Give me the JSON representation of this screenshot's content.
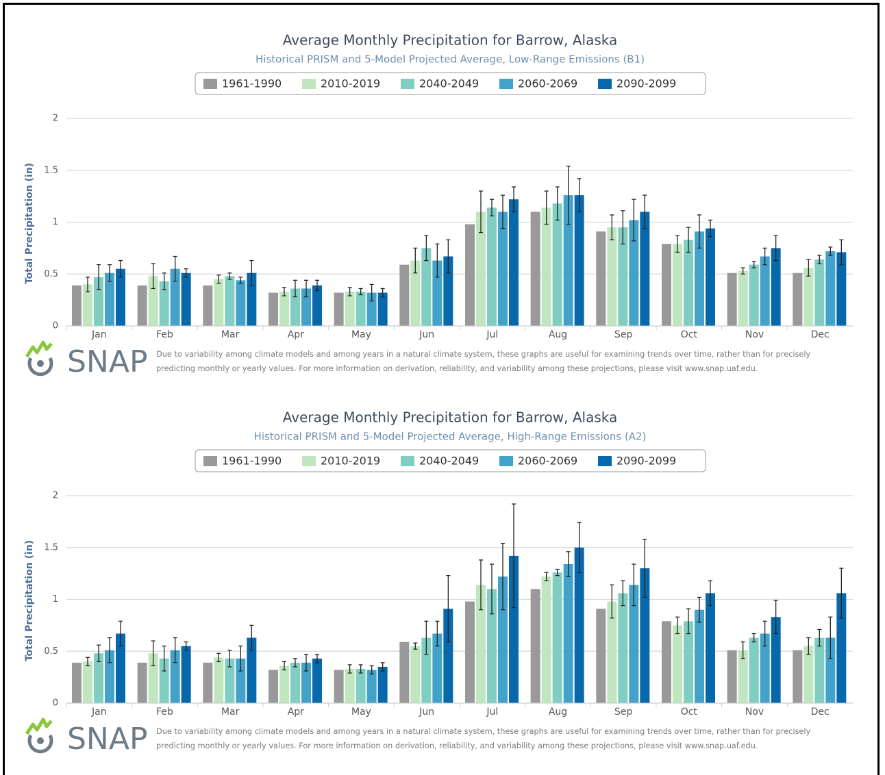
{
  "chart_data": [
    {
      "type": "bar",
      "title": "Average Monthly Precipitation for Barrow, Alaska",
      "subtitle": "Historical PRISM and 5-Model Projected Average, Low-Range Emissions (B1)",
      "y_label": "Total Precipitation (in)",
      "categories": [
        "Jan",
        "Feb",
        "Mar",
        "Apr",
        "May",
        "Jun",
        "Jul",
        "Aug",
        "Sep",
        "Oct",
        "Nov",
        "Dec"
      ],
      "ylim": [
        0,
        2
      ],
      "yticks": [
        0,
        0.5,
        1,
        1.5,
        2
      ],
      "grid": true,
      "series": [
        {
          "name": "1961-1990",
          "color": "#999999",
          "values": [
            0.39,
            0.39,
            0.39,
            0.32,
            0.32,
            0.59,
            0.98,
            1.1,
            0.91,
            0.79,
            0.51,
            0.51
          ]
        },
        {
          "name": "2010-2019",
          "color": "#bfe6bf",
          "values": [
            0.4,
            0.48,
            0.45,
            0.33,
            0.33,
            0.63,
            1.1,
            1.14,
            0.95,
            0.79,
            0.53,
            0.56
          ],
          "errors": [
            0.07,
            0.12,
            0.04,
            0.04,
            0.04,
            0.12,
            0.2,
            0.16,
            0.12,
            0.08,
            0.03,
            0.08
          ]
        },
        {
          "name": "2040-2049",
          "color": "#80cdc1",
          "values": [
            0.47,
            0.43,
            0.48,
            0.36,
            0.33,
            0.75,
            1.14,
            1.18,
            0.95,
            0.83,
            0.59,
            0.64
          ],
          "errors": [
            0.12,
            0.08,
            0.03,
            0.08,
            0.03,
            0.12,
            0.08,
            0.16,
            0.16,
            0.12,
            0.03,
            0.04
          ]
        },
        {
          "name": "2060-2069",
          "color": "#43a2ca",
          "values": [
            0.51,
            0.55,
            0.44,
            0.36,
            0.32,
            0.63,
            1.1,
            1.26,
            1.02,
            0.91,
            0.67,
            0.72
          ],
          "errors": [
            0.08,
            0.12,
            0.03,
            0.08,
            0.08,
            0.16,
            0.16,
            0.28,
            0.2,
            0.16,
            0.08,
            0.04
          ]
        },
        {
          "name": "2090-2099",
          "color": "#0868ac",
          "values": [
            0.55,
            0.51,
            0.51,
            0.39,
            0.32,
            0.67,
            1.22,
            1.26,
            1.1,
            0.94,
            0.75,
            0.71
          ],
          "errors": [
            0.08,
            0.04,
            0.12,
            0.05,
            0.04,
            0.16,
            0.12,
            0.16,
            0.16,
            0.08,
            0.12,
            0.12
          ]
        }
      ],
      "logo_text": "SNAP",
      "note": "Due to variability among climate models and among years in a natural climate system, these graphs are useful for examining trends over time, rather than for precisely predicting monthly or yearly values. For more information on derivation, reliability, and variability among these projections, please visit www.snap.uaf.edu."
    },
    {
      "type": "bar",
      "title": "Average Monthly Precipitation for Barrow, Alaska",
      "subtitle": "Historical PRISM and 5-Model Projected Average, High-Range Emissions (A2)",
      "y_label": "Total Precipitation (in)",
      "categories": [
        "Jan",
        "Feb",
        "Mar",
        "Apr",
        "May",
        "Jun",
        "Jul",
        "Aug",
        "Sep",
        "Oct",
        "Nov",
        "Dec"
      ],
      "ylim": [
        0,
        2
      ],
      "yticks": [
        0,
        0.5,
        1,
        1.5,
        2
      ],
      "grid": true,
      "series": [
        {
          "name": "1961-1990",
          "color": "#999999",
          "values": [
            0.39,
            0.39,
            0.39,
            0.32,
            0.32,
            0.59,
            0.98,
            1.1,
            0.91,
            0.79,
            0.51,
            0.51
          ]
        },
        {
          "name": "2010-2019",
          "color": "#bfe6bf",
          "values": [
            0.4,
            0.48,
            0.44,
            0.36,
            0.33,
            0.55,
            1.14,
            1.22,
            0.98,
            0.75,
            0.51,
            0.55
          ],
          "errors": [
            0.04,
            0.12,
            0.04,
            0.04,
            0.04,
            0.03,
            0.24,
            0.04,
            0.16,
            0.08,
            0.08,
            0.08
          ]
        },
        {
          "name": "2040-2049",
          "color": "#80cdc1",
          "values": [
            0.48,
            0.43,
            0.43,
            0.39,
            0.33,
            0.63,
            1.1,
            1.26,
            1.06,
            0.79,
            0.63,
            0.63
          ],
          "errors": [
            0.08,
            0.12,
            0.08,
            0.04,
            0.04,
            0.16,
            0.24,
            0.03,
            0.12,
            0.12,
            0.04,
            0.08
          ]
        },
        {
          "name": "2060-2069",
          "color": "#43a2ca",
          "values": [
            0.51,
            0.51,
            0.43,
            0.39,
            0.32,
            0.67,
            1.22,
            1.34,
            1.14,
            0.9,
            0.67,
            0.63
          ],
          "errors": [
            0.12,
            0.12,
            0.12,
            0.08,
            0.04,
            0.12,
            0.32,
            0.12,
            0.2,
            0.12,
            0.12,
            0.2
          ]
        },
        {
          "name": "2090-2099",
          "color": "#0868ac",
          "values": [
            0.67,
            0.55,
            0.63,
            0.43,
            0.35,
            0.91,
            1.42,
            1.5,
            1.3,
            1.06,
            0.83,
            1.06
          ],
          "errors": [
            0.12,
            0.04,
            0.12,
            0.04,
            0.04,
            0.32,
            0.5,
            0.24,
            0.28,
            0.12,
            0.16,
            0.24
          ]
        }
      ],
      "logo_text": "SNAP",
      "note": "Due to variability among climate models and among years in a natural climate system, these graphs are useful for examining trends over time, rather than for precisely predicting monthly or yearly values. For more information on derivation, reliability, and variability among these projections, please visit www.snap.uaf.edu."
    }
  ]
}
